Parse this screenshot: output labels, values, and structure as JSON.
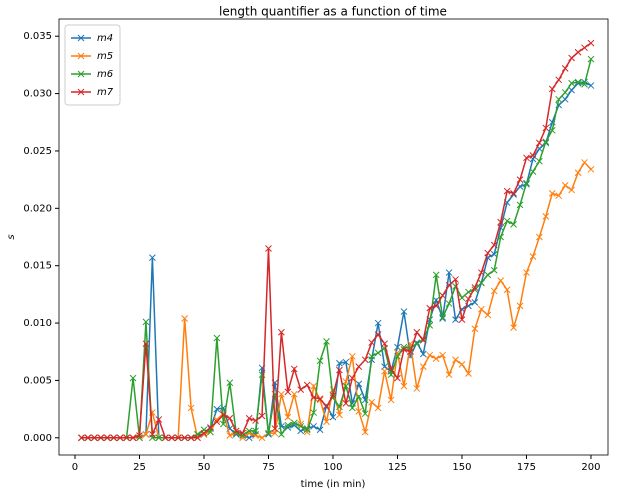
{
  "chart_data": {
    "type": "line",
    "title": "length quantifier as a function of time",
    "xlabel": "time (in min)",
    "ylabel": "s",
    "x": [
      2.5,
      5,
      7.5,
      10,
      12.5,
      15,
      17.5,
      20,
      22.5,
      25,
      27.5,
      30,
      32.5,
      35,
      37.5,
      40,
      42.5,
      45,
      47.5,
      50,
      52.5,
      55,
      57.5,
      60,
      62.5,
      65,
      67.5,
      70,
      72.5,
      75,
      77.5,
      80,
      82.5,
      85,
      87.5,
      90,
      92.5,
      95,
      97.5,
      100,
      102.5,
      105,
      107.5,
      110,
      112.5,
      115,
      117.5,
      120,
      122.5,
      125,
      127.5,
      130,
      132.5,
      135,
      137.5,
      140,
      142.5,
      145,
      147.5,
      150,
      152.5,
      155,
      157.5,
      160,
      162.5,
      165,
      167.5,
      170,
      172.5,
      175,
      177.5,
      180,
      182.5,
      185,
      187.5,
      190,
      192.5,
      195,
      197.5,
      200
    ],
    "series": [
      {
        "name": "m4",
        "color": "#1f77b4",
        "values": [
          0,
          0,
          0,
          0,
          0,
          0,
          0,
          0,
          0,
          0,
          0.0003,
          0.0157,
          0,
          0,
          0,
          0,
          0,
          0,
          0.0003,
          0.0003,
          0.0008,
          0.0025,
          0.0026,
          0.0008,
          0.0003,
          0.0002,
          0,
          0.0003,
          0.0061,
          0.0003,
          0.0048,
          0.001,
          0.0009,
          0.0011,
          0.0006,
          0.0008,
          0.001,
          0.0007,
          0.0028,
          0.0018,
          0.0065,
          0.0066,
          0.003,
          0.0047,
          0.0033,
          0.0068,
          0.01,
          0.0062,
          0.0058,
          0.0079,
          0.011,
          0.0071,
          0.0083,
          0.0073,
          0.0103,
          0.012,
          0.0104,
          0.0144,
          0.0103,
          0.0112,
          0.0115,
          0.0118,
          0.0135,
          0.0157,
          0.016,
          0.0183,
          0.0205,
          0.0212,
          0.0219,
          0.0221,
          0.0243,
          0.0252,
          0.0257,
          0.0275,
          0.029,
          0.0295,
          0.0303,
          0.0309,
          0.031,
          0.0307
        ]
      },
      {
        "name": "m5",
        "color": "#ff7f0e",
        "values": [
          0,
          0,
          0,
          0,
          0,
          0,
          0,
          0,
          0,
          0,
          0.0003,
          0.0022,
          0,
          0,
          0,
          0,
          0.0104,
          0.0026,
          0,
          0.0003,
          0.0005,
          0.0016,
          0.0021,
          0.0002,
          0.0004,
          0,
          0.0004,
          0.0002,
          0,
          0.0004,
          0.0004,
          0.0038,
          0.0018,
          0.0038,
          0.0012,
          0.0005,
          0.0045,
          0.0033,
          0.0014,
          0.0042,
          0.002,
          0.0049,
          0.0071,
          0.0023,
          0.0005,
          0.0031,
          0.0026,
          0.0058,
          0.0033,
          0.0074,
          0.0045,
          0.0082,
          0.0043,
          0.0062,
          0.0072,
          0.0069,
          0.0072,
          0.0055,
          0.0068,
          0.0064,
          0.0056,
          0.0095,
          0.0112,
          0.0107,
          0.0128,
          0.0137,
          0.0129,
          0.0096,
          0.0115,
          0.0144,
          0.0158,
          0.0175,
          0.0193,
          0.0213,
          0.0211,
          0.022,
          0.0216,
          0.0231,
          0.024,
          0.0234
        ]
      },
      {
        "name": "m6",
        "color": "#2ca02c",
        "values": [
          0,
          0,
          0,
          0,
          0,
          0,
          0,
          0,
          0.0052,
          0,
          0.0101,
          0,
          0,
          0,
          0,
          0,
          0,
          0,
          0.0003,
          0.0007,
          0.0005,
          0.0087,
          0.0012,
          0.0048,
          0.0004,
          0.0002,
          0.0006,
          0.0006,
          0.0055,
          0.0004,
          0.0038,
          0.0003,
          0.0011,
          0.0013,
          0.001,
          0.0007,
          0.0022,
          0.0067,
          0.0084,
          0.0035,
          0.0027,
          0.0045,
          0.0026,
          0.0036,
          0.0021,
          0.0071,
          0.0074,
          0.0078,
          0.0055,
          0.0071,
          0.0079,
          0.0078,
          0.0082,
          0.0086,
          0.0098,
          0.0142,
          0.0105,
          0.0117,
          0.0132,
          0.0122,
          0.0127,
          0.0129,
          0.0135,
          0.0142,
          0.0146,
          0.0175,
          0.0189,
          0.0186,
          0.0203,
          0.0222,
          0.0232,
          0.0241,
          0.0258,
          0.0268,
          0.0295,
          0.0301,
          0.0309,
          0.031,
          0.0308,
          0.033
        ]
      },
      {
        "name": "m7",
        "color": "#d62728",
        "values": [
          0,
          0,
          0,
          0,
          0,
          0,
          0,
          0,
          0,
          0.0002,
          0.0082,
          0.0003,
          0.0016,
          0,
          0,
          0,
          0,
          0,
          0,
          0.0004,
          0.0009,
          0.0014,
          0.002,
          0.0017,
          0.0006,
          0.0004,
          0.0017,
          0.0015,
          0.0019,
          0.0165,
          0.0008,
          0.0092,
          0.004,
          0.006,
          0.0042,
          0.0046,
          0.0035,
          0.0034,
          0.0027,
          0.0037,
          0.0059,
          0.003,
          0.0052,
          0.0062,
          0.0068,
          0.0083,
          0.009,
          0.0082,
          0.006,
          0.0052,
          0.0077,
          0.0075,
          0.0092,
          0.0085,
          0.0113,
          0.0115,
          0.0124,
          0.0133,
          0.0138,
          0.0103,
          0.0121,
          0.0131,
          0.0144,
          0.0161,
          0.0168,
          0.0188,
          0.0215,
          0.0213,
          0.0225,
          0.0244,
          0.0246,
          0.0257,
          0.027,
          0.0304,
          0.0312,
          0.0322,
          0.0331,
          0.0336,
          0.034,
          0.0344
        ]
      }
    ],
    "xlim": [
      -6.2,
      206.6
    ],
    "ylim": [
      -0.0015,
      0.0365
    ],
    "xticks": [
      0,
      25,
      50,
      75,
      100,
      125,
      150,
      175,
      200
    ],
    "yticks": [
      {
        "value": 0,
        "label": "0.000"
      },
      {
        "value": 0.005,
        "label": "0.005"
      },
      {
        "value": 0.01,
        "label": "0.010"
      },
      {
        "value": 0.015,
        "label": "0.015"
      },
      {
        "value": 0.02,
        "label": "0.020"
      },
      {
        "value": 0.025,
        "label": "0.025"
      },
      {
        "value": 0.03,
        "label": "0.030"
      },
      {
        "value": 0.035,
        "label": "0.035"
      }
    ],
    "legend": "upper left"
  }
}
